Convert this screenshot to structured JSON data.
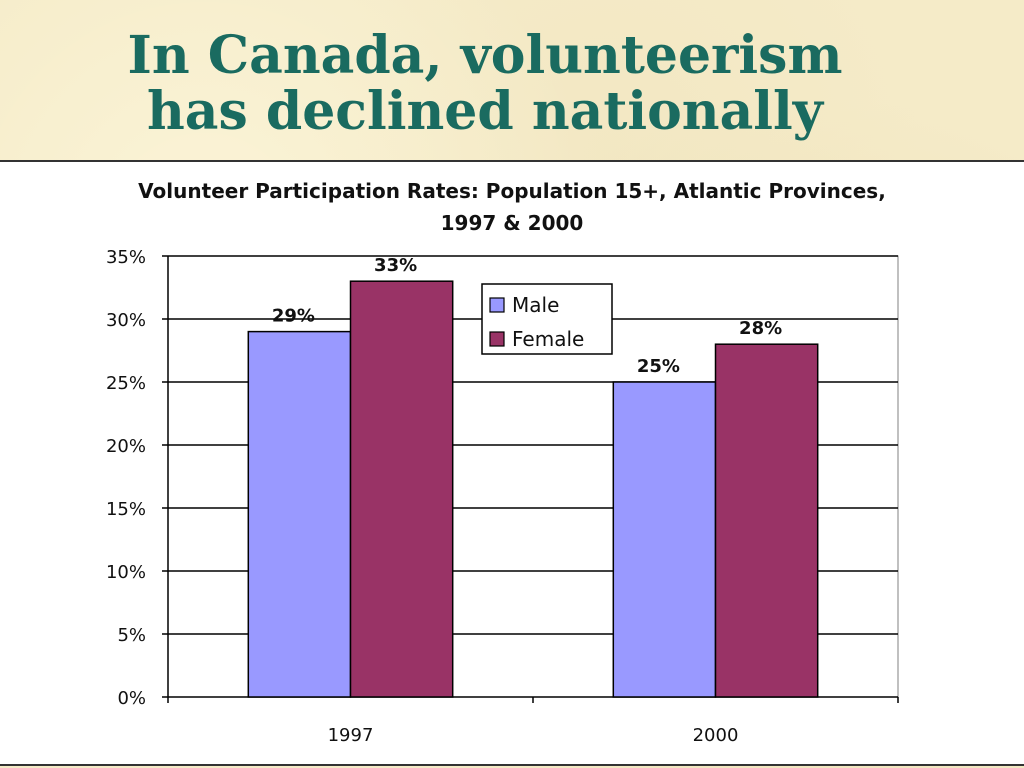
{
  "slide": {
    "title_line1": "In Canada, volunteerism",
    "title_line2": "has declined nationally"
  },
  "chart_data": {
    "type": "bar",
    "title_line1": "Volunteer Participation Rates: Population 15+, Atlantic Provinces,",
    "title_line2": "1997 & 2000",
    "categories": [
      "1997",
      "2000"
    ],
    "series": [
      {
        "name": "Male",
        "values": [
          29,
          25
        ],
        "labels": [
          "29%",
          "25%"
        ],
        "color": "#9999ff"
      },
      {
        "name": "Female",
        "values": [
          33,
          28
        ],
        "labels": [
          "33%",
          "28%"
        ],
        "color": "#993366"
      }
    ],
    "ylim": [
      0,
      35
    ],
    "y_ticks": [
      0,
      5,
      10,
      15,
      20,
      25,
      30,
      35
    ],
    "y_tick_labels": [
      "0%",
      "5%",
      "10%",
      "15%",
      "20%",
      "25%",
      "30%",
      "35%"
    ],
    "grid": true,
    "legend_position": "top-center",
    "plot_background": "#ffffff"
  }
}
